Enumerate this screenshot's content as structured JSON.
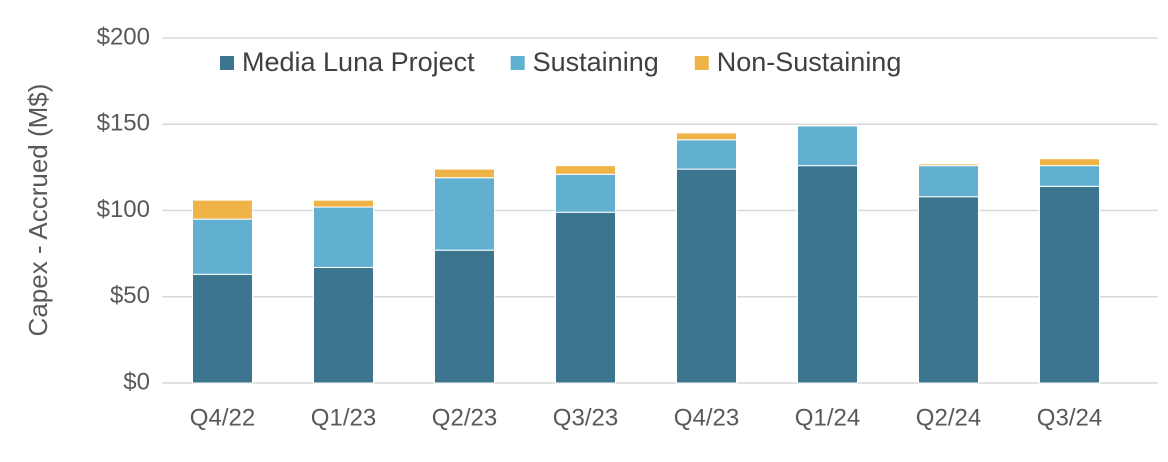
{
  "chart_data": {
    "type": "stacked_bar",
    "y_axis_label": "Capex - Accrued (M$)",
    "categories": [
      "Q4/22",
      "Q1/23",
      "Q2/23",
      "Q3/23",
      "Q4/23",
      "Q1/24",
      "Q2/24",
      "Q3/24"
    ],
    "series": [
      {
        "name": "Media Luna Project",
        "color": "#3b7590",
        "values": [
          63,
          67,
          77,
          99,
          124,
          126,
          108,
          114
        ]
      },
      {
        "name": "Sustaining",
        "color": "#62b0d0",
        "values": [
          32,
          35,
          42,
          22,
          17,
          23,
          18,
          12
        ]
      },
      {
        "name": "Non-Sustaining",
        "color": "#f0b347",
        "values": [
          11,
          4,
          5,
          5,
          4,
          0,
          1,
          4
        ]
      }
    ],
    "ylim": [
      0,
      200
    ],
    "yticks": [
      {
        "value": 0,
        "label": "$0"
      },
      {
        "value": 50,
        "label": "$50"
      },
      {
        "value": 100,
        "label": "$100"
      },
      {
        "value": 150,
        "label": "$150"
      },
      {
        "value": 200,
        "label": "$200"
      }
    ],
    "grid": true,
    "legend": "top-left"
  }
}
